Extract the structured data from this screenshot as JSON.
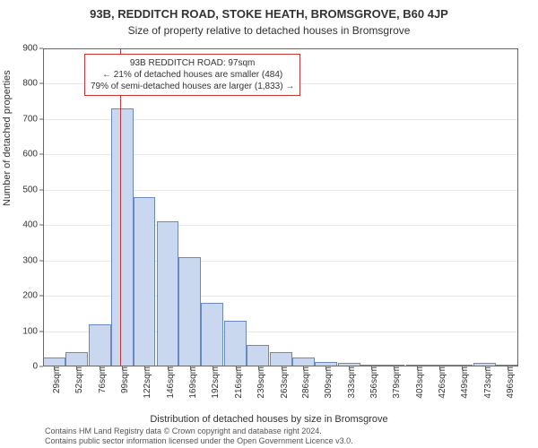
{
  "chart": {
    "type": "histogram",
    "title_main": "93B, REDDITCH ROAD, STOKE HEATH, BROMSGROVE, B60 4JP",
    "title_sub": "Size of property relative to detached houses in Bromsgrove",
    "y_label": "Number of detached properties",
    "x_label": "Distribution of detached houses by size in Bromsgrove",
    "footer_line1": "Contains HM Land Registry data © Crown copyright and database right 2024.",
    "footer_line2": "Contains public sector information licensed under the Open Government Licence v3.0.",
    "background_color": "#ffffff",
    "frame_border_color": "#666666",
    "grid_color": "#e8e8e8",
    "bar_fill_color": "#c9d7ef",
    "bar_border_color": "#6a89c2",
    "ref_line_color": "#cc3333",
    "annotation_border_color": "#cc3333",
    "title_fontsize": 13,
    "subtitle_fontsize": 12,
    "axis_label_fontsize": 11,
    "tick_fontsize": 10,
    "annotation_fontsize": 10,
    "footer_fontsize": 9,
    "ylim": [
      0,
      900
    ],
    "ytick_step": 100,
    "x_range": [
      17.5,
      507.5
    ],
    "bar_bin_width": 23,
    "reference_value": 97,
    "annotation": {
      "line1": "93B REDDITCH ROAD: 97sqm",
      "line2": "← 21% of detached houses are smaller (484)",
      "line3": "79% of semi-detached houses are larger (1,833) →"
    },
    "bars": [
      {
        "center": 29,
        "value": 25,
        "xlabel": "29sqm"
      },
      {
        "center": 52,
        "value": 40,
        "xlabel": "52sqm"
      },
      {
        "center": 76,
        "value": 120,
        "xlabel": "76sqm"
      },
      {
        "center": 99,
        "value": 730,
        "xlabel": "99sqm"
      },
      {
        "center": 122,
        "value": 480,
        "xlabel": "122sqm"
      },
      {
        "center": 146,
        "value": 410,
        "xlabel": "146sqm"
      },
      {
        "center": 169,
        "value": 310,
        "xlabel": "169sqm"
      },
      {
        "center": 192,
        "value": 180,
        "xlabel": "192sqm"
      },
      {
        "center": 216,
        "value": 130,
        "xlabel": "216sqm"
      },
      {
        "center": 239,
        "value": 60,
        "xlabel": "239sqm"
      },
      {
        "center": 263,
        "value": 40,
        "xlabel": "263sqm"
      },
      {
        "center": 286,
        "value": 25,
        "xlabel": "286sqm"
      },
      {
        "center": 309,
        "value": 12,
        "xlabel": "309sqm"
      },
      {
        "center": 333,
        "value": 10,
        "xlabel": "333sqm"
      },
      {
        "center": 356,
        "value": 6,
        "xlabel": "356sqm"
      },
      {
        "center": 379,
        "value": 6,
        "xlabel": "379sqm"
      },
      {
        "center": 403,
        "value": 2,
        "xlabel": "403sqm"
      },
      {
        "center": 426,
        "value": 4,
        "xlabel": "426sqm"
      },
      {
        "center": 449,
        "value": 2,
        "xlabel": "449sqm"
      },
      {
        "center": 473,
        "value": 10,
        "xlabel": "473sqm"
      },
      {
        "center": 496,
        "value": 2,
        "xlabel": "496sqm"
      }
    ]
  }
}
